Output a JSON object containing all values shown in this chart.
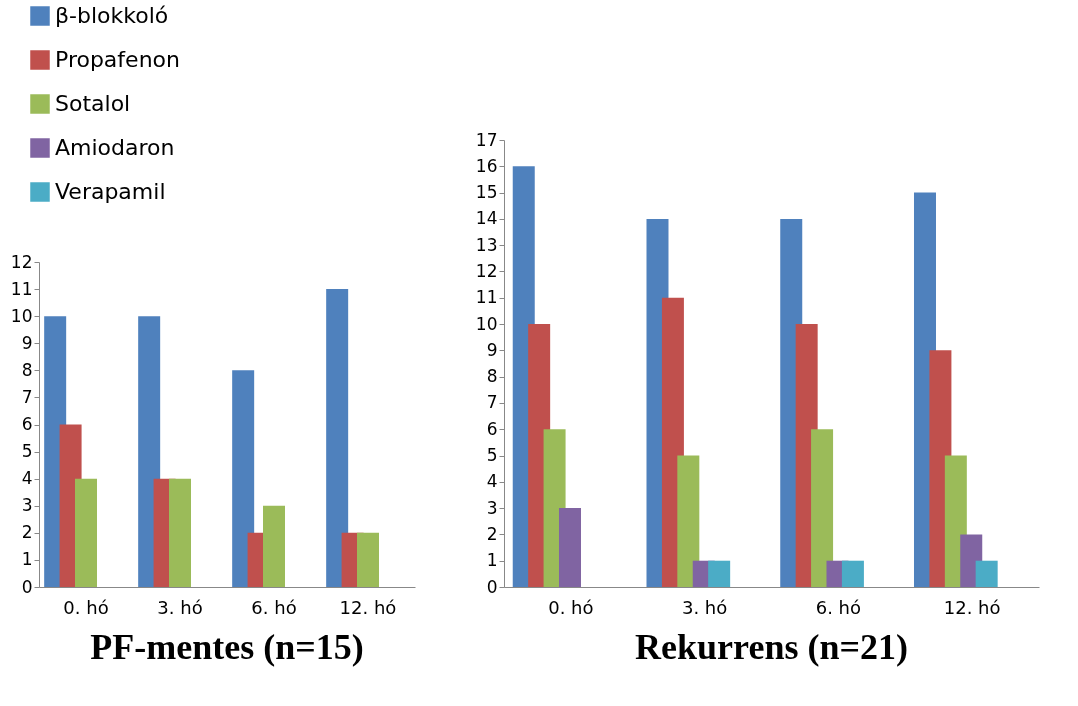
{
  "chart_data": [
    {
      "type": "bar",
      "title": "PF-mentes (n=15)",
      "categories": [
        "0. hó",
        "3. hó",
        "6. hó",
        "12. hó"
      ],
      "ylim": [
        0,
        12
      ],
      "yticks": [
        0,
        1,
        2,
        3,
        4,
        5,
        6,
        7,
        8,
        9,
        10,
        11,
        12
      ],
      "grid": false,
      "legend": "top left",
      "series": [
        {
          "name": "β-blokkoló",
          "color": "#4f81bd",
          "values": [
            10,
            10,
            8,
            11
          ]
        },
        {
          "name": "Propafenon",
          "color": "#c0504d",
          "values": [
            6,
            4,
            2,
            2
          ]
        },
        {
          "name": "Sotalol",
          "color": "#9bbb59",
          "values": [
            4,
            4,
            3,
            2
          ]
        },
        {
          "name": "Amiodaron",
          "color": "#8064a2",
          "values": [
            null,
            null,
            null,
            null
          ]
        },
        {
          "name": "Verapamil",
          "color": "#4bacc6",
          "values": [
            null,
            null,
            null,
            null
          ]
        }
      ]
    },
    {
      "type": "bar",
      "title": "Rekurrens (n=21)",
      "categories": [
        "0. hó",
        "3. hó",
        "6. hó",
        "12. hó"
      ],
      "ylim": [
        0,
        17
      ],
      "yticks": [
        0,
        1,
        2,
        3,
        4,
        5,
        6,
        7,
        8,
        9,
        10,
        11,
        12,
        13,
        14,
        15,
        16,
        17
      ],
      "grid": false,
      "series": [
        {
          "color": "#4f81bd",
          "values": [
            16,
            14,
            14,
            15
          ]
        },
        {
          "color": "#c0504d",
          "values": [
            10,
            11,
            10,
            9
          ]
        },
        {
          "color": "#9bbb59",
          "values": [
            6,
            5,
            6,
            5
          ]
        },
        {
          "color": "#8064a2",
          "values": [
            3,
            1,
            1,
            2
          ]
        },
        {
          "color": "#4bacc6",
          "values": [
            null,
            1,
            1,
            1
          ]
        }
      ]
    }
  ]
}
